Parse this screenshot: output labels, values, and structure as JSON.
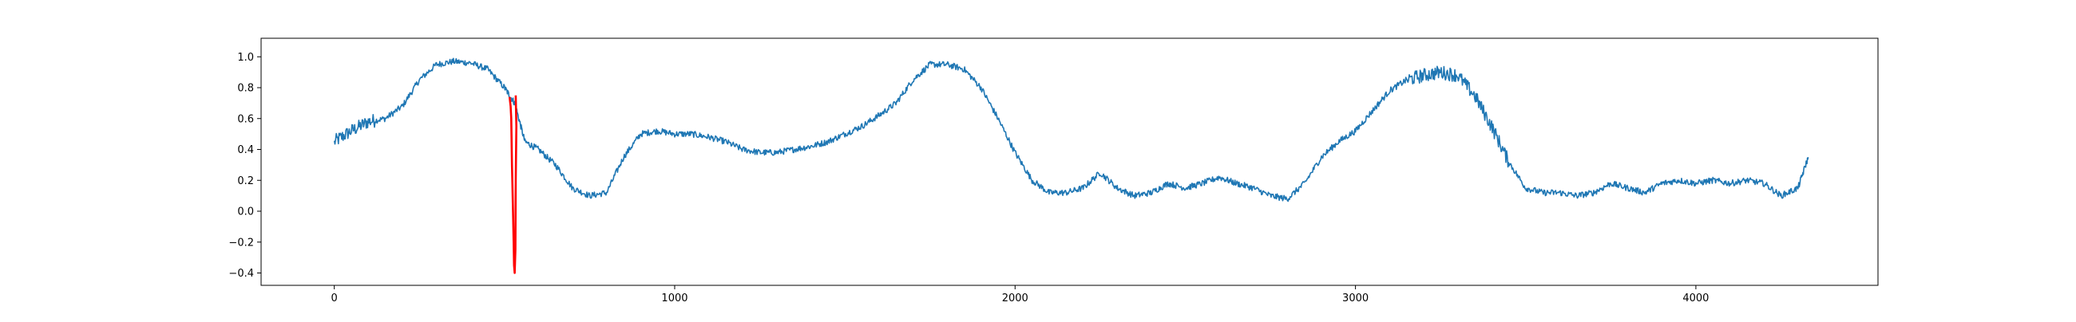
{
  "chart_data": {
    "type": "line",
    "title": "",
    "xlabel": "",
    "ylabel": "",
    "xlim": [
      -215,
      4535
    ],
    "ylim": [
      -0.48,
      1.12
    ],
    "grid": false,
    "x_ticks": [
      0,
      1000,
      2000,
      3000,
      4000
    ],
    "x_tick_labels": [
      "0",
      "1000",
      "2000",
      "3000",
      "4000"
    ],
    "y_ticks": [
      -0.4,
      -0.2,
      0.0,
      0.2,
      0.4,
      0.6,
      0.8,
      1.0
    ],
    "y_tick_labels": [
      "−0.4",
      "−0.2",
      "0.0",
      "0.2",
      "0.4",
      "0.6",
      "0.8",
      "1.0"
    ],
    "series": [
      {
        "color": "#1f77b4",
        "x": [
          0,
          50,
          100,
          150,
          200,
          250,
          300,
          350,
          400,
          450,
          500,
          530,
          560,
          600,
          650,
          700,
          750,
          800,
          850,
          900,
          950,
          1000,
          1050,
          1100,
          1150,
          1200,
          1250,
          1300,
          1350,
          1400,
          1450,
          1500,
          1550,
          1600,
          1650,
          1700,
          1750,
          1800,
          1850,
          1900,
          1950,
          2000,
          2050,
          2100,
          2150,
          2200,
          2250,
          2300,
          2350,
          2400,
          2450,
          2500,
          2550,
          2600,
          2650,
          2700,
          2750,
          2800,
          2850,
          2900,
          2950,
          3000,
          3050,
          3100,
          3150,
          3200,
          3250,
          3300,
          3350,
          3400,
          3450,
          3500,
          3550,
          3600,
          3650,
          3700,
          3750,
          3800,
          3850,
          3900,
          3950,
          4000,
          4050,
          4100,
          4150,
          4200,
          4250,
          4300,
          4330
        ],
        "y": [
          0.45,
          0.52,
          0.58,
          0.6,
          0.68,
          0.85,
          0.95,
          0.97,
          0.96,
          0.92,
          0.8,
          0.7,
          0.45,
          0.4,
          0.3,
          0.15,
          0.1,
          0.12,
          0.35,
          0.5,
          0.52,
          0.5,
          0.5,
          0.48,
          0.45,
          0.4,
          0.38,
          0.38,
          0.4,
          0.42,
          0.45,
          0.5,
          0.55,
          0.62,
          0.7,
          0.85,
          0.95,
          0.95,
          0.92,
          0.8,
          0.6,
          0.38,
          0.2,
          0.12,
          0.12,
          0.15,
          0.25,
          0.15,
          0.1,
          0.12,
          0.18,
          0.15,
          0.18,
          0.22,
          0.18,
          0.15,
          0.1,
          0.08,
          0.18,
          0.35,
          0.45,
          0.52,
          0.65,
          0.78,
          0.85,
          0.88,
          0.9,
          0.88,
          0.75,
          0.55,
          0.32,
          0.15,
          0.12,
          0.12,
          0.1,
          0.12,
          0.18,
          0.15,
          0.12,
          0.18,
          0.2,
          0.18,
          0.2,
          0.18,
          0.2,
          0.18,
          0.1,
          0.15,
          0.35
        ]
      },
      {
        "color": "#ff0000",
        "x": [
          515,
          518,
          520,
          522,
          525,
          527,
          528,
          530,
          532,
          533,
          535,
          533
        ],
        "y": [
          0.74,
          0.68,
          0.6,
          0.3,
          0.0,
          -0.2,
          -0.35,
          -0.4,
          -0.25,
          0.2,
          0.55,
          0.75
        ]
      }
    ]
  }
}
